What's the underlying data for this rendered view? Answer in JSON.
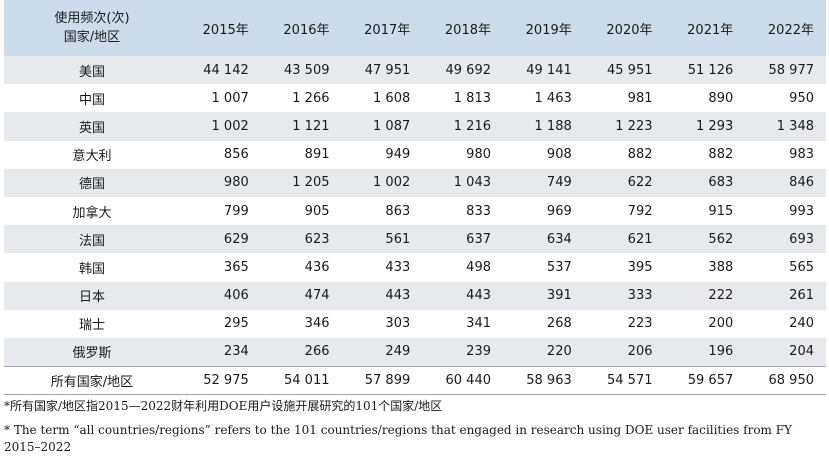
{
  "table": {
    "corner_line1": "使用频次(次)",
    "corner_line2": "国家/地区",
    "years": [
      "2015年",
      "2016年",
      "2017年",
      "2018年",
      "2019年",
      "2020年",
      "2021年",
      "2022年"
    ],
    "rows": [
      {
        "name": "美国",
        "values": [
          "44 142",
          "43 509",
          "47 951",
          "49 692",
          "49 141",
          "45 951",
          "51 126",
          "58 977"
        ]
      },
      {
        "name": "中国",
        "values": [
          "1 007",
          "1 266",
          "1 608",
          "1 813",
          "1 463",
          "981",
          "890",
          "950"
        ]
      },
      {
        "name": "英国",
        "values": [
          "1 002",
          "1 121",
          "1 087",
          "1 216",
          "1 188",
          "1 223",
          "1 293",
          "1 348"
        ]
      },
      {
        "name": "意大利",
        "values": [
          "856",
          "891",
          "949",
          "980",
          "908",
          "882",
          "882",
          "983"
        ]
      },
      {
        "name": "德国",
        "values": [
          "980",
          "1 205",
          "1 002",
          "1 043",
          "749",
          "622",
          "683",
          "846"
        ]
      },
      {
        "name": "加拿大",
        "values": [
          "799",
          "905",
          "863",
          "833",
          "969",
          "792",
          "915",
          "993"
        ]
      },
      {
        "name": "法国",
        "values": [
          "629",
          "623",
          "561",
          "637",
          "634",
          "621",
          "562",
          "693"
        ]
      },
      {
        "name": "韩国",
        "values": [
          "365",
          "436",
          "433",
          "498",
          "537",
          "395",
          "388",
          "565"
        ]
      },
      {
        "name": "日本",
        "values": [
          "406",
          "474",
          "443",
          "443",
          "391",
          "333",
          "222",
          "261"
        ]
      },
      {
        "name": "瑞士",
        "values": [
          "295",
          "346",
          "303",
          "341",
          "268",
          "223",
          "200",
          "240"
        ]
      },
      {
        "name": "俄罗斯",
        "values": [
          "234",
          "266",
          "249",
          "239",
          "220",
          "206",
          "196",
          "204"
        ]
      }
    ],
    "total": {
      "name": "所有国家/地区",
      "values": [
        "52 975",
        "54 011",
        "57 899",
        "60 440",
        "58 963",
        "54 571",
        "59 657",
        "68 950"
      ]
    }
  },
  "notes": {
    "zh": "*所有国家/地区指2015—2022财年利用DOE用户设施开展研究的101个国家/地区",
    "en": "* The term “all countries/regions” refers to the 101 countries/regions that engaged in research using DOE user facilities from FY 2015–2022"
  },
  "colors": {
    "header_bg": "#ccdceb",
    "stripe_bg": "#e7e9ec",
    "rule": "#9aa9b8"
  }
}
